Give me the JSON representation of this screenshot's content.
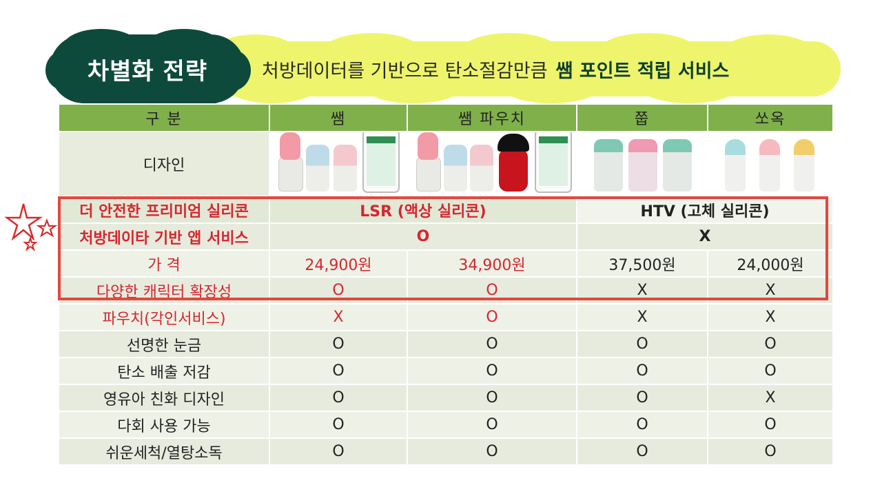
{
  "header": {
    "title": "차별화 전략",
    "subtitle_lead": "처방데이터를 기반으로 탄소절감만큼",
    "subtitle_bold": "쌤 포인트 적립 서비스"
  },
  "table": {
    "columns": [
      "구  분",
      "쌤",
      "쌤 파우치",
      "쭙",
      "쏘옥"
    ],
    "design_label": "디자인",
    "rows": {
      "silicone": {
        "label": "더 안전한 프리미엄 실리콘",
        "ssam": "LSR (액상 실리콘)",
        "competitor": "HTV (고체 실리콘)"
      },
      "app": {
        "label": "처방데이타 기반 앱 서비스",
        "ssam": "O",
        "competitor": "X"
      },
      "price": {
        "label": "가   격",
        "c1": "24,900원",
        "c2": "34,900원",
        "c3": "37,500원",
        "c4": "24,000원"
      },
      "character": {
        "label": "다양한 캐릭터  확장성",
        "c1": "O",
        "c2": "O",
        "c3": "X",
        "c4": "X"
      },
      "pouch": {
        "label": "파우치(각인서비스)",
        "c1": "X",
        "c2": "O",
        "c3": "X",
        "c4": "X"
      },
      "scale": {
        "label": "선명한 눈금",
        "c1": "O",
        "c2": "O",
        "c3": "O",
        "c4": "O"
      },
      "carbon": {
        "label": "탄소 배출 저감",
        "c1": "O",
        "c2": "O",
        "c3": "O",
        "c4": "O"
      },
      "infant": {
        "label": "영유아 친화 디자인",
        "c1": "O",
        "c2": "O",
        "c3": "O",
        "c4": "X"
      },
      "reuse": {
        "label": "다회 사용 가능",
        "c1": "O",
        "c2": "O",
        "c3": "O",
        "c4": "O"
      },
      "clean": {
        "label": "쉬운세척/열탕소독",
        "c1": "O",
        "c2": "O",
        "c3": "O",
        "c4": "O"
      }
    }
  },
  "colors": {
    "title_bg": "#0e4a3b",
    "banner_bg": "#eef56c",
    "header_green": "#7fb04a",
    "highlight_red": "#d6262e",
    "box_border": "#e2473f"
  },
  "icons": [
    "star-doodle-icon"
  ]
}
